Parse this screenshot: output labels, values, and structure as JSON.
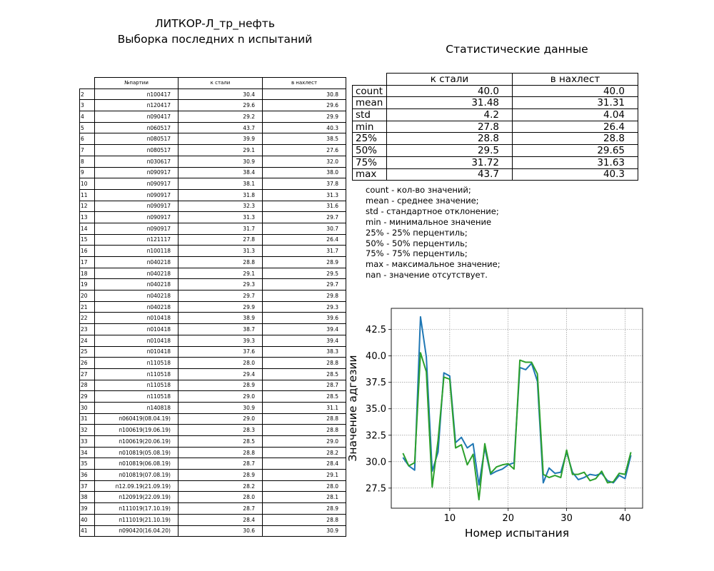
{
  "title_line1": "ЛИТКОР-Л_тр_нефть",
  "title_line2": "Выборка последних n испытаний",
  "stats_title": "Статистические данные",
  "test_table": {
    "headers": [
      "№партии",
      "к стали",
      "в нахлест"
    ],
    "rows": [
      {
        "idx": "2",
        "lot": "п100417",
        "steel": "30.4",
        "overlap": "30.8"
      },
      {
        "idx": "3",
        "lot": "п120417",
        "steel": "29.6",
        "overlap": "29.6"
      },
      {
        "idx": "4",
        "lot": "п090417",
        "steel": "29.2",
        "overlap": "29.9"
      },
      {
        "idx": "5",
        "lot": "п060517",
        "steel": "43.7",
        "overlap": "40.3"
      },
      {
        "idx": "6",
        "lot": "п080517",
        "steel": "39.9",
        "overlap": "38.5"
      },
      {
        "idx": "7",
        "lot": "п080517",
        "steel": "29.1",
        "overlap": "27.6"
      },
      {
        "idx": "8",
        "lot": "п030617",
        "steel": "30.9",
        "overlap": "32.0"
      },
      {
        "idx": "9",
        "lot": "п090917",
        "steel": "38.4",
        "overlap": "38.0"
      },
      {
        "idx": "10",
        "lot": "п090917",
        "steel": "38.1",
        "overlap": "37.8"
      },
      {
        "idx": "11",
        "lot": "п090917",
        "steel": "31.8",
        "overlap": "31.3"
      },
      {
        "idx": "12",
        "lot": "п090917",
        "steel": "32.3",
        "overlap": "31.6"
      },
      {
        "idx": "13",
        "lot": "п090917",
        "steel": "31.3",
        "overlap": "29.7"
      },
      {
        "idx": "14",
        "lot": "п090917",
        "steel": "31.7",
        "overlap": "30.7"
      },
      {
        "idx": "15",
        "lot": "п121117",
        "steel": "27.8",
        "overlap": "26.4"
      },
      {
        "idx": "16",
        "lot": "п100118",
        "steel": "31.3",
        "overlap": "31.7"
      },
      {
        "idx": "17",
        "lot": "п040218",
        "steel": "28.8",
        "overlap": "28.9"
      },
      {
        "idx": "18",
        "lot": "п040218",
        "steel": "29.1",
        "overlap": "29.5"
      },
      {
        "idx": "19",
        "lot": "п040218",
        "steel": "29.3",
        "overlap": "29.7"
      },
      {
        "idx": "20",
        "lot": "п040218",
        "steel": "29.7",
        "overlap": "29.8"
      },
      {
        "idx": "21",
        "lot": "п040218",
        "steel": "29.9",
        "overlap": "29.3"
      },
      {
        "idx": "22",
        "lot": "п010418",
        "steel": "38.9",
        "overlap": "39.6"
      },
      {
        "idx": "23",
        "lot": "п010418",
        "steel": "38.7",
        "overlap": "39.4"
      },
      {
        "idx": "24",
        "lot": "п010418",
        "steel": "39.3",
        "overlap": "39.4"
      },
      {
        "idx": "25",
        "lot": "п010418",
        "steel": "37.6",
        "overlap": "38.3"
      },
      {
        "idx": "26",
        "lot": "п110518",
        "steel": "28.0",
        "overlap": "28.8"
      },
      {
        "idx": "27",
        "lot": "п110518",
        "steel": "29.4",
        "overlap": "28.5"
      },
      {
        "idx": "28",
        "lot": "п110518",
        "steel": "28.9",
        "overlap": "28.7"
      },
      {
        "idx": "29",
        "lot": "п110518",
        "steel": "29.0",
        "overlap": "28.5"
      },
      {
        "idx": "30",
        "lot": "п140818",
        "steel": "30.9",
        "overlap": "31.1"
      },
      {
        "idx": "31",
        "lot": "п060419(08.04.19)",
        "steel": "29.0",
        "overlap": "28.8"
      },
      {
        "idx": "32",
        "lot": "п100619(19.06.19)",
        "steel": "28.3",
        "overlap": "28.8"
      },
      {
        "idx": "33",
        "lot": "п100619(20.06.19)",
        "steel": "28.5",
        "overlap": "29.0"
      },
      {
        "idx": "34",
        "lot": "п010819(05.08.19)",
        "steel": "28.8",
        "overlap": "28.2"
      },
      {
        "idx": "35",
        "lot": "п010819(06.08.19)",
        "steel": "28.7",
        "overlap": "28.4"
      },
      {
        "idx": "36",
        "lot": "п010819(07.08.19)",
        "steel": "28.9",
        "overlap": "29.1"
      },
      {
        "idx": "37",
        "lot": "п12.09.19(21.09.19)",
        "steel": "28.2",
        "overlap": "28.0"
      },
      {
        "idx": "38",
        "lot": "п120919(22.09.19)",
        "steel": "28.0",
        "overlap": "28.1"
      },
      {
        "idx": "39",
        "lot": "п111019(17.10.19)",
        "steel": "28.7",
        "overlap": "28.9"
      },
      {
        "idx": "40",
        "lot": "п111019(21.10.19)",
        "steel": "28.4",
        "overlap": "28.8"
      },
      {
        "idx": "41",
        "lot": "п090420(16.04.20)",
        "steel": "30.6",
        "overlap": "30.9"
      }
    ]
  },
  "stats_table": {
    "headers": [
      "к стали",
      "в нахлест"
    ],
    "rows": [
      {
        "label": "count",
        "steel": "40.0",
        "overlap": "40.0"
      },
      {
        "label": "mean",
        "steel": "31.48",
        "overlap": "31.31"
      },
      {
        "label": "std",
        "steel": "4.2",
        "overlap": "4.04"
      },
      {
        "label": "min",
        "steel": "27.8",
        "overlap": "26.4"
      },
      {
        "label": "25%",
        "steel": "28.8",
        "overlap": "28.8"
      },
      {
        "label": "50%",
        "steel": "29.5",
        "overlap": "29.65"
      },
      {
        "label": "75%",
        "steel": "31.72",
        "overlap": "31.63"
      },
      {
        "label": "max",
        "steel": "43.7",
        "overlap": "40.3"
      }
    ]
  },
  "legend_lines": [
    "count - кол-во значений;",
    "mean - среднее значение;",
    "std - стандартное отклонение;",
    "min - минимальное значение",
    "25% - 25% перцентиль;",
    "50% - 50% перцентиль;",
    "75% - 75% перцентиль;",
    "max - максимальное значение;",
    "nan - значение отсутствует."
  ],
  "chart_data": {
    "type": "line",
    "xlabel": "Номер испытания",
    "ylabel": "Значение адгезии",
    "xlim": [
      0,
      43
    ],
    "ylim": [
      25.6,
      44.5
    ],
    "x_ticks": [
      10,
      20,
      30,
      40
    ],
    "y_ticks": [
      27.5,
      30.0,
      32.5,
      35.0,
      37.5,
      40.0,
      42.5
    ],
    "grid": true,
    "x": [
      2,
      3,
      4,
      5,
      6,
      7,
      8,
      9,
      10,
      11,
      12,
      13,
      14,
      15,
      16,
      17,
      18,
      19,
      20,
      21,
      22,
      23,
      24,
      25,
      26,
      27,
      28,
      29,
      30,
      31,
      32,
      33,
      34,
      35,
      36,
      37,
      38,
      39,
      40,
      41
    ],
    "series": [
      {
        "color": "#1f77b4",
        "values": [
          30.4,
          29.6,
          29.2,
          43.7,
          39.9,
          29.1,
          30.9,
          38.4,
          38.1,
          31.8,
          32.3,
          31.3,
          31.7,
          27.8,
          31.3,
          28.8,
          29.1,
          29.3,
          29.7,
          29.9,
          38.9,
          38.7,
          39.3,
          37.6,
          28.0,
          29.4,
          28.9,
          29.0,
          30.9,
          29.0,
          28.3,
          28.5,
          28.8,
          28.7,
          28.9,
          28.2,
          28.0,
          28.7,
          28.4,
          30.6
        ]
      },
      {
        "color": "#2ca02c",
        "values": [
          30.8,
          29.6,
          29.9,
          40.3,
          38.5,
          27.6,
          32.0,
          38.0,
          37.8,
          31.3,
          31.6,
          29.7,
          30.7,
          26.4,
          31.7,
          28.9,
          29.5,
          29.7,
          29.8,
          29.3,
          39.6,
          39.4,
          39.4,
          38.3,
          28.8,
          28.5,
          28.7,
          28.5,
          31.1,
          28.8,
          28.8,
          29.0,
          28.2,
          28.4,
          29.1,
          28.0,
          28.1,
          28.9,
          28.8,
          30.9
        ]
      }
    ]
  }
}
